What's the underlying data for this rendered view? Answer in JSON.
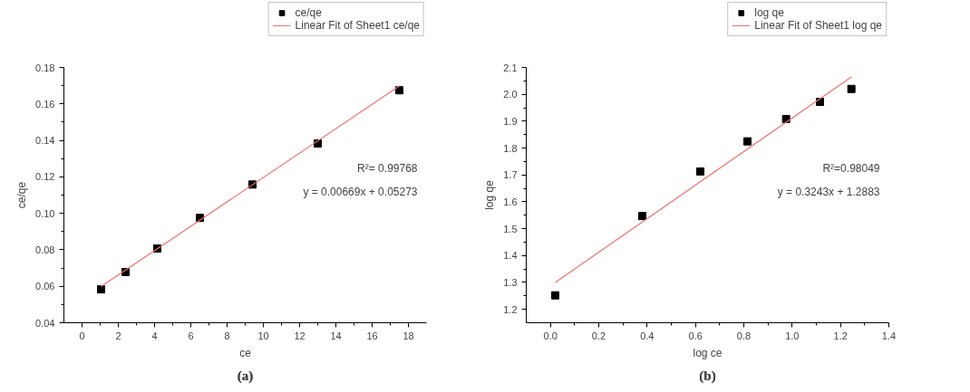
{
  "chart_data": [
    {
      "type": "scatter",
      "title": "(a)",
      "xlabel": "ce",
      "ylabel": "ce/qe",
      "grid": false,
      "legend": "top right",
      "xlim": [
        -1,
        19
      ],
      "xticks": [
        0,
        2,
        4,
        6,
        8,
        10,
        12,
        14,
        16,
        18
      ],
      "ylim": [
        0.04,
        0.18
      ],
      "yticks": [
        {
          "value": 0.04,
          "label": "0.04"
        },
        {
          "value": 0.06,
          "label": "0.06"
        },
        {
          "value": 0.08,
          "label": "0.08"
        },
        {
          "value": 0.1,
          "label": "0.10"
        },
        {
          "value": 0.12,
          "label": "0.12"
        },
        {
          "value": 0.14,
          "label": "0.14"
        },
        {
          "value": 0.16,
          "label": "0.16"
        },
        {
          "value": 0.18,
          "label": "0.18"
        }
      ],
      "series": [
        {
          "name": "ce/qe",
          "marker": "square",
          "color": "#000000",
          "x": [
            1.05,
            2.4,
            4.15,
            6.5,
            9.4,
            13.0,
            17.5
          ],
          "values": [
            0.0583,
            0.0678,
            0.0807,
            0.0975,
            0.1158,
            0.1383,
            0.1675
          ]
        },
        {
          "name": "Linear Fit of Sheet1 ce/qe",
          "type": "line",
          "color": "#f07070",
          "x": [
            1.05,
            17.5
          ],
          "values": [
            0.0598,
            0.1698
          ]
        }
      ],
      "annotations": [
        "R²= 0.99768",
        "y = 0.00669x + 0.05273"
      ]
    },
    {
      "type": "scatter",
      "title": "(b)",
      "xlabel": "log ce",
      "ylabel": "log qe",
      "grid": false,
      "legend": "top right",
      "xlim": [
        -0.1,
        1.4
      ],
      "xticks": [
        {
          "value": 0,
          "label": "0.0"
        },
        0.2,
        0.4,
        0.6,
        0.8,
        {
          "value": 1,
          "label": "1.0"
        },
        1.2,
        1.4
      ],
      "ylim": [
        1.15,
        2.1
      ],
      "yticks": [
        1.2,
        1.3,
        1.4,
        1.5,
        1.6,
        1.7,
        1.8,
        1.9,
        {
          "value": 2,
          "label": "2.0"
        },
        2.1
      ],
      "series": [
        {
          "name": "log qe",
          "marker": "square",
          "color": "#000000",
          "x": [
            0.02,
            0.38,
            0.62,
            0.815,
            0.975,
            1.115,
            1.245
          ],
          "values": [
            1.252,
            1.547,
            1.713,
            1.825,
            1.908,
            1.972,
            2.02
          ]
        },
        {
          "name": "Linear Fit of Sheet1 log qe",
          "type": "line",
          "color": "#f07070",
          "x": [
            0.02,
            1.245
          ],
          "values": [
            1.3,
            2.065
          ]
        }
      ],
      "annotations": [
        "R²=0.98049",
        "y = 0.3243x + 1.2883"
      ]
    }
  ]
}
